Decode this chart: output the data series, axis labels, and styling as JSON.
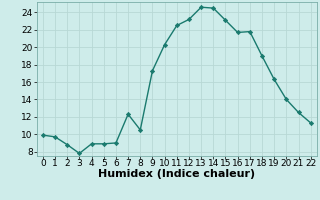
{
  "xlabel": "Humidex (Indice chaleur)",
  "x": [
    0,
    1,
    2,
    3,
    4,
    5,
    6,
    7,
    8,
    9,
    10,
    11,
    12,
    13,
    14,
    15,
    16,
    17,
    18,
    19,
    20,
    21,
    22
  ],
  "y": [
    9.9,
    9.7,
    8.8,
    7.8,
    8.9,
    8.9,
    9.0,
    12.3,
    10.5,
    17.3,
    20.3,
    22.5,
    23.2,
    24.6,
    24.5,
    23.1,
    21.7,
    21.8,
    19.0,
    16.3,
    14.0,
    12.5,
    11.3
  ],
  "line_color": "#1a7a6e",
  "marker": "D",
  "marker_size": 2.2,
  "bg_color": "#ceecea",
  "grid_color": "#b8d8d5",
  "ylim": [
    7.5,
    25.2
  ],
  "xlim": [
    -0.5,
    22.5
  ],
  "yticks": [
    8,
    10,
    12,
    14,
    16,
    18,
    20,
    22,
    24
  ],
  "xticks": [
    0,
    1,
    2,
    3,
    4,
    5,
    6,
    7,
    8,
    9,
    10,
    11,
    12,
    13,
    14,
    15,
    16,
    17,
    18,
    19,
    20,
    21,
    22
  ],
  "tick_fontsize": 6.5,
  "xlabel_fontsize": 8.0
}
